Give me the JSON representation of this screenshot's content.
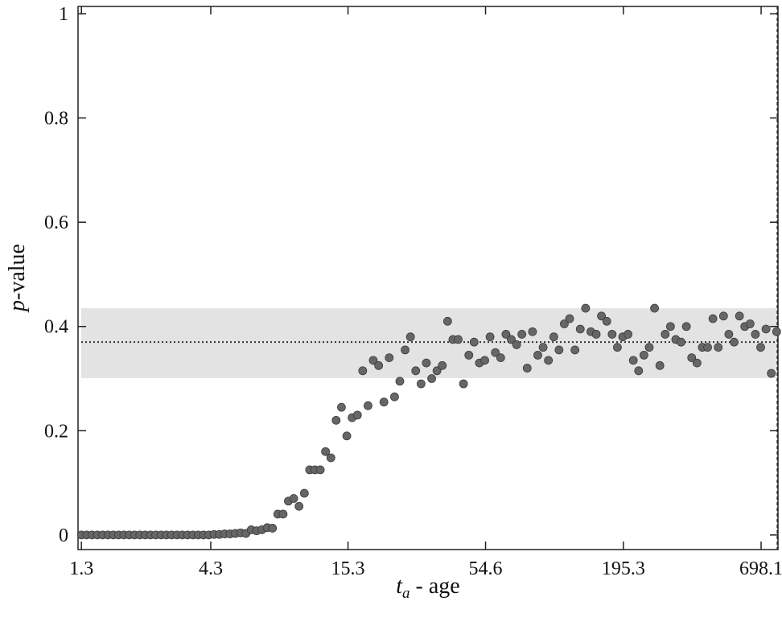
{
  "chart_data": {
    "type": "scatter",
    "xlabel": {
      "symbol": "t",
      "subscript": "a",
      "text": " - age"
    },
    "ylabel": {
      "symbol": "p",
      "text": "-value"
    },
    "xscale": "log",
    "xlim": [
      1.26,
      816
    ],
    "ylim": [
      -0.028,
      1.014
    ],
    "xticks": [
      1.3,
      4.3,
      15.3,
      54.6,
      195.3,
      698.1
    ],
    "yticks": [
      0,
      0.2,
      0.4,
      0.6,
      0.8,
      1
    ],
    "band": [
      0.301,
      0.435
    ],
    "band_color": "#e3e3e3",
    "mean_line": 0.37,
    "color": "#666666",
    "x": [
      1.3,
      1.365,
      1.434,
      1.506,
      1.582,
      1.662,
      1.745,
      1.833,
      1.925,
      2.022,
      2.124,
      2.231,
      2.343,
      2.461,
      2.585,
      2.715,
      2.851,
      2.995,
      3.145,
      3.304,
      3.47,
      3.644,
      3.828,
      4.02,
      4.223,
      4.435,
      4.658,
      4.892,
      5.139,
      5.397,
      5.669,
      5.954,
      6.253,
      6.568,
      6.898,
      7.245,
      7.61,
      7.993,
      8.395,
      8.817,
      9.26,
      9.726,
      10.22,
      10.73,
      11.27,
      11.84,
      12.43,
      13.06,
      13.71,
      14.4,
      15.13,
      15.89,
      16.69,
      17.53,
      18.41,
      19.33,
      20.31,
      21.33,
      22.4,
      23.53,
      24.71,
      25.95,
      27.26,
      28.63,
      30.07,
      31.58,
      33.17,
      34.84,
      36.59,
      38.43,
      40.37,
      42.4,
      44.53,
      46.77,
      49.12,
      51.59,
      54.19,
      56.91,
      59.78,
      62.78,
      65.94,
      69.26,
      72.74,
      76.4,
      80.25,
      84.28,
      88.52,
      92.97,
      97.65,
      102.6,
      107.7,
      113.1,
      118.8,
      124.8,
      131.1,
      137.7,
      144.6,
      151.9,
      159.5,
      167.5,
      176.0,
      184.8,
      194.1,
      203.9,
      214.1,
      224.9,
      236.2,
      248.1,
      260.6,
      273.7,
      287.5,
      301.9,
      317.1,
      333.1,
      349.8,
      367.4,
      385.9,
      405.3,
      425.7,
      447.1,
      469.6,
      493.2,
      518.0,
      544.1,
      571.5,
      600.2,
      630.4,
      662.1,
      695.4,
      730.4,
      767.1,
      805.7
    ],
    "values": [
      0,
      0,
      0,
      0,
      0,
      0,
      0,
      0,
      0,
      0,
      0,
      0,
      0,
      0,
      0,
      0,
      0,
      0,
      0,
      0,
      0,
      0,
      0,
      0,
      0,
      0.001,
      0.001,
      0.002,
      0.002,
      0.003,
      0.004,
      0.003,
      0.01,
      0.008,
      0.01,
      0.014,
      0.013,
      0.04,
      0.04,
      0.065,
      0.07,
      0.055,
      0.08,
      0.125,
      0.125,
      0.125,
      0.16,
      0.148,
      0.22,
      0.245,
      0.19,
      0.225,
      0.23,
      0.315,
      0.248,
      0.335,
      0.325,
      0.255,
      0.34,
      0.265,
      0.295,
      0.355,
      0.38,
      0.315,
      0.29,
      0.33,
      0.3,
      0.315,
      0.325,
      0.41,
      0.375,
      0.375,
      0.29,
      0.345,
      0.37,
      0.33,
      0.335,
      0.38,
      0.35,
      0.34,
      0.385,
      0.375,
      0.365,
      0.385,
      0.32,
      0.39,
      0.345,
      0.36,
      0.335,
      0.38,
      0.355,
      0.405,
      0.415,
      0.355,
      0.395,
      0.435,
      0.39,
      0.385,
      0.42,
      0.41,
      0.385,
      0.36,
      0.38,
      0.385,
      0.335,
      0.315,
      0.345,
      0.36,
      0.435,
      0.325,
      0.385,
      0.4,
      0.375,
      0.37,
      0.4,
      0.34,
      0.33,
      0.36,
      0.36,
      0.415,
      0.36,
      0.42,
      0.385,
      0.37,
      0.42,
      0.4,
      0.405,
      0.385,
      0.36,
      0.395,
      0.31,
      0.39
    ]
  }
}
